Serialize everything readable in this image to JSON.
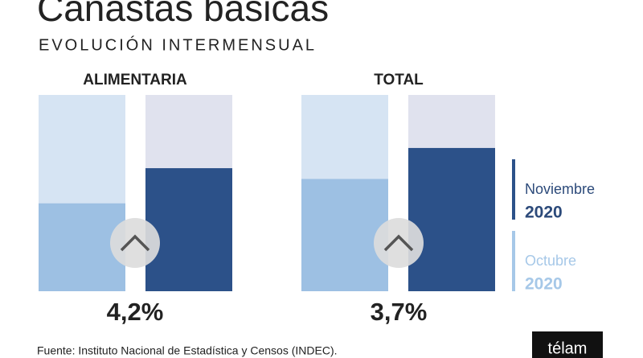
{
  "header": {
    "title": "Canastas básicas",
    "subtitle": "EVOLUCIÓN INTERMENSUAL"
  },
  "chart_data": [
    {
      "type": "bar",
      "title": "ALIMENTARIA",
      "ylim": [
        0,
        6.7
      ],
      "series": [
        {
          "color": "#9dc0e3",
          "background": "#d6e4f3",
          "values": [
            3.0
          ]
        },
        {
          "color": "#2c5189",
          "background": "#e0e2ee",
          "values": [
            4.2
          ],
          "value_labels": [
            "4,2%"
          ]
        }
      ]
    },
    {
      "type": "bar",
      "title": "TOTAL",
      "ylim": [
        0,
        5.07
      ],
      "series": [
        {
          "name": "Octubre",
          "year": "2020",
          "color": "#9dc0e3",
          "background": "#d6e4f3",
          "legend_color": "#a6c8e8",
          "values": [
            2.9
          ]
        },
        {
          "name": "Noviembre",
          "year": "2020",
          "color": "#2c5189",
          "background": "#e0e2ee",
          "legend_color": "#2c5189",
          "values": [
            3.7
          ],
          "value_labels": [
            "3,7%"
          ]
        }
      ]
    }
  ],
  "footer": {
    "source": "Fuente: Instituto Nacional de Estadística y Censos (INDEC).",
    "logo": "télam"
  }
}
